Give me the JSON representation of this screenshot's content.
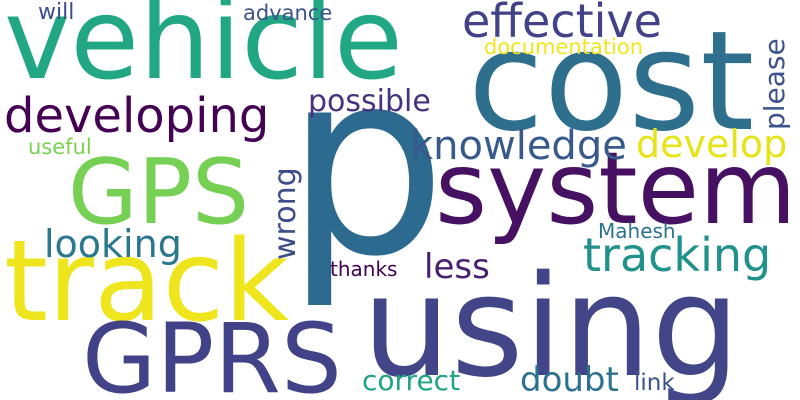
{
  "cloud": {
    "background": "#ffffff",
    "words": {
      "p": {
        "text": "p",
        "color": "#2c6a8f"
      },
      "using": {
        "text": "using",
        "color": "#424688"
      },
      "cost": {
        "text": "cost",
        "color": "#2f6f8e"
      },
      "vehicle": {
        "text": "vehicle",
        "color": "#22a784"
      },
      "system": {
        "text": "system",
        "color": "#471163"
      },
      "track": {
        "text": "track",
        "color": "#efe51c"
      },
      "GPRS": {
        "text": "GPRS",
        "color": "#414287"
      },
      "GPS": {
        "text": "GPS",
        "color": "#75d054"
      },
      "effective": {
        "text": "effective",
        "color": "#414287"
      },
      "developing": {
        "text": "developing",
        "color": "#440154"
      },
      "tracking": {
        "text": "tracking",
        "color": "#21918c"
      },
      "knowledge": {
        "text": "knowledge",
        "color": "#38598c"
      },
      "develop": {
        "text": "develop",
        "color": "#e5e419"
      },
      "looking": {
        "text": "looking",
        "color": "#2a788e"
      },
      "possible": {
        "text": "possible",
        "color": "#46327e"
      },
      "please": {
        "text": "please",
        "color": "#3b528b"
      },
      "wrong": {
        "text": "wrong",
        "color": "#3e4c8a"
      },
      "less": {
        "text": "less",
        "color": "#481f70"
      },
      "doubt": {
        "text": "doubt",
        "color": "#2c728e"
      },
      "correct": {
        "text": "correct",
        "color": "#20a386"
      },
      "documentation": {
        "text": "documentation",
        "color": "#f1e51d"
      },
      "advance": {
        "text": "advance",
        "color": "#3b528b"
      },
      "will": {
        "text": "will",
        "color": "#3e4c8a"
      },
      "useful": {
        "text": "useful",
        "color": "#7ad151"
      },
      "Mahesh": {
        "text": "Mahesh",
        "color": "#2c728e"
      },
      "thanks": {
        "text": "thanks",
        "color": "#440154"
      },
      "link": {
        "text": "link",
        "color": "#3b528b"
      }
    }
  }
}
